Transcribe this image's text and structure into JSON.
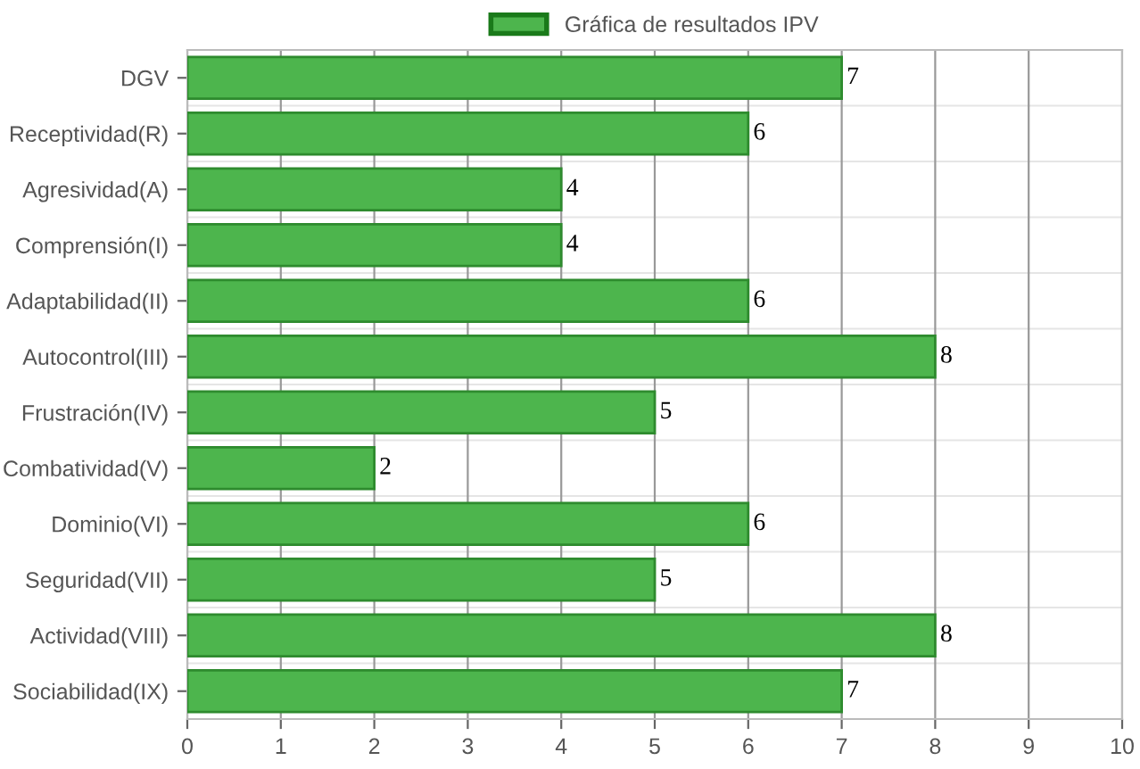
{
  "chart_data": {
    "type": "bar",
    "orientation": "horizontal",
    "categories": [
      "DGV",
      "Receptividad(R)",
      "Agresividad(A)",
      "Comprensión(I)",
      "Adaptabilidad(II)",
      "Autocontrol(III)",
      "Frustración(IV)",
      "Combatividad(V)",
      "Dominio(VI)",
      "Seguridad(VII)",
      "Actividad(VIII)",
      "Sociabilidad(IX)"
    ],
    "series": [
      {
        "name": "Gráfica de resultados IPV",
        "color": "#4db54d",
        "values": [
          7,
          6,
          4,
          4,
          6,
          8,
          5,
          2,
          6,
          5,
          8,
          7
        ]
      }
    ],
    "xlim": [
      0,
      10
    ],
    "xticks": [
      0,
      1,
      2,
      3,
      4,
      5,
      6,
      7,
      8,
      9,
      10
    ],
    "grid": true,
    "legend": "top",
    "data_labels": true
  }
}
